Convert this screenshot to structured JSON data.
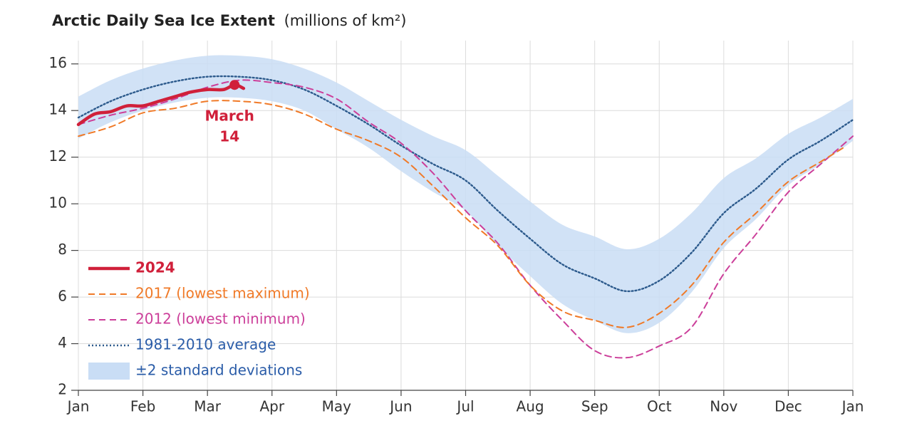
{
  "chart_data": {
    "type": "line",
    "title": "Arctic Daily Sea Ice Extent",
    "y_label": "(millions of km²)",
    "xlim": [
      0,
      12
    ],
    "xticks": [
      {
        "value": 0,
        "label": "Jan"
      },
      {
        "value": 1,
        "label": "Feb"
      },
      {
        "value": 2,
        "label": "Mar"
      },
      {
        "value": 3,
        "label": "Apr"
      },
      {
        "value": 4,
        "label": "May"
      },
      {
        "value": 5,
        "label": "Jun"
      },
      {
        "value": 6,
        "label": "Jul"
      },
      {
        "value": 7,
        "label": "Aug"
      },
      {
        "value": 8,
        "label": "Sep"
      },
      {
        "value": 9,
        "label": "Oct"
      },
      {
        "value": 10,
        "label": "Nov"
      },
      {
        "value": 11,
        "label": "Dec"
      },
      {
        "value": 12,
        "label": "Jan"
      }
    ],
    "ylim": [
      2,
      17
    ],
    "yticks": [
      2,
      4,
      6,
      8,
      10,
      12,
      14,
      16
    ],
    "grid": true,
    "legend": "lower left",
    "series": [
      {
        "name": "±2 standard deviations",
        "style": "band",
        "color": "#c9ddf5",
        "label_color": "#2a5ca8",
        "x": [
          0,
          0.5,
          1,
          1.5,
          2,
          2.5,
          3,
          3.5,
          4,
          4.5,
          5,
          5.5,
          6,
          6.5,
          7,
          7.5,
          8,
          8.5,
          9,
          9.5,
          10,
          10.5,
          11,
          11.5,
          12
        ],
        "upper": [
          14.6,
          15.3,
          15.8,
          16.15,
          16.35,
          16.35,
          16.2,
          15.8,
          15.2,
          14.4,
          13.6,
          12.9,
          12.3,
          11.2,
          10.1,
          9.1,
          8.6,
          8.05,
          8.5,
          9.6,
          11.1,
          11.95,
          13.0,
          13.7,
          14.5
        ],
        "lower": [
          12.8,
          13.5,
          14.0,
          14.35,
          14.55,
          14.55,
          14.4,
          14.0,
          13.2,
          12.4,
          11.4,
          10.5,
          9.7,
          8.2,
          6.9,
          5.7,
          5.0,
          4.45,
          4.9,
          6.2,
          8.1,
          9.35,
          10.8,
          11.7,
          12.7
        ]
      },
      {
        "name": "1981-2010 average",
        "style": "dotted",
        "color": "#2c5a8c",
        "label_color": "#2a5ca8",
        "x": [
          0,
          0.5,
          1,
          1.5,
          2,
          2.5,
          3,
          3.5,
          4,
          4.5,
          5,
          5.5,
          6,
          6.5,
          7,
          7.5,
          8,
          8.5,
          9,
          9.5,
          10,
          10.5,
          11,
          11.5,
          12
        ],
        "values": [
          13.7,
          14.4,
          14.9,
          15.25,
          15.45,
          15.45,
          15.3,
          14.9,
          14.2,
          13.4,
          12.5,
          11.7,
          11.0,
          9.7,
          8.5,
          7.4,
          6.8,
          6.25,
          6.7,
          7.9,
          9.6,
          10.65,
          11.9,
          12.7,
          13.6
        ]
      },
      {
        "name": "2012 (lowest minimum)",
        "style": "dashed",
        "color": "#cc3f9a",
        "label_color": "#cc3f9a",
        "x": [
          0,
          0.5,
          1,
          1.5,
          2,
          2.5,
          3,
          3.5,
          4,
          4.5,
          5,
          5.5,
          6,
          6.5,
          7,
          7.5,
          8,
          8.5,
          9,
          9.5,
          10,
          10.5,
          11,
          11.5,
          12
        ],
        "values": [
          13.4,
          13.8,
          14.1,
          14.5,
          15.0,
          15.3,
          15.2,
          15.0,
          14.5,
          13.5,
          12.6,
          11.3,
          9.7,
          8.3,
          6.5,
          5.0,
          3.7,
          3.4,
          3.9,
          4.7,
          7.0,
          8.7,
          10.5,
          11.7,
          12.9
        ]
      },
      {
        "name": "2017 (lowest maximum)",
        "style": "dashed",
        "color": "#f07a28",
        "label_color": "#f07a28",
        "x": [
          0,
          0.5,
          1,
          1.5,
          2,
          2.5,
          3,
          3.5,
          4,
          4.5,
          5,
          5.5,
          6,
          6.5,
          7,
          7.5,
          8,
          8.5,
          9,
          9.5,
          10,
          10.5,
          11,
          11.5,
          11.85
        ],
        "values": [
          12.9,
          13.3,
          13.9,
          14.1,
          14.4,
          14.4,
          14.25,
          13.85,
          13.2,
          12.7,
          12.0,
          10.75,
          9.4,
          8.2,
          6.5,
          5.4,
          5.0,
          4.7,
          5.3,
          6.5,
          8.35,
          9.6,
          10.95,
          11.8,
          12.4
        ]
      },
      {
        "name": "2024",
        "style": "solid",
        "color": "#d0203a",
        "label_color": "#d0203a",
        "marker_index": 10,
        "x": [
          0,
          0.25,
          0.5,
          0.75,
          1,
          1.25,
          1.5,
          1.75,
          2,
          2.25,
          2.42,
          2.56
        ],
        "values": [
          13.4,
          13.85,
          13.95,
          14.2,
          14.2,
          14.4,
          14.6,
          14.8,
          14.9,
          14.9,
          15.1,
          14.95
        ]
      }
    ],
    "annotation": {
      "lines": [
        "March",
        "14"
      ],
      "color": "#d0203a"
    },
    "legend_order": [
      4,
      3,
      2,
      1,
      0
    ]
  }
}
